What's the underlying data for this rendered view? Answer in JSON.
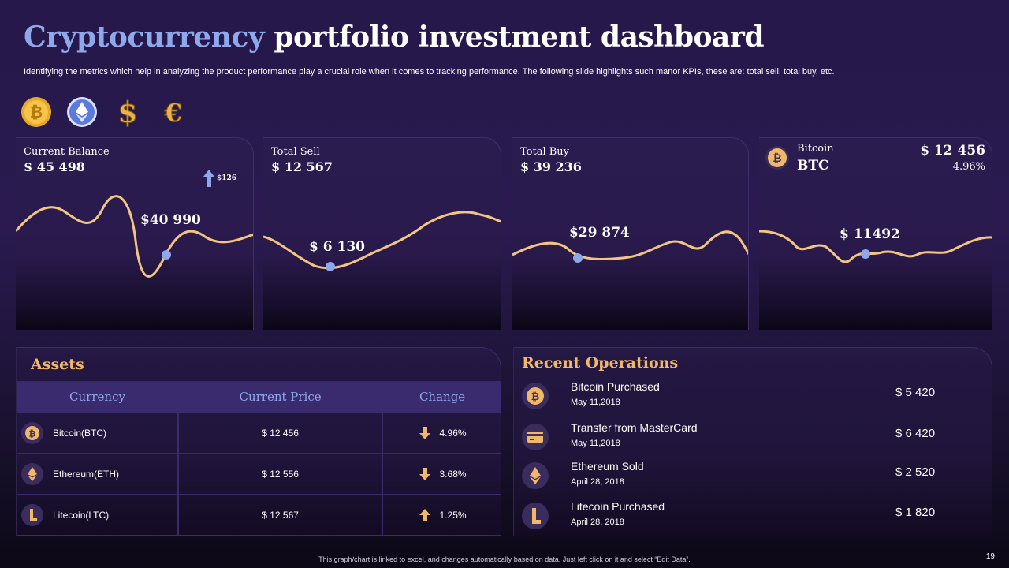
{
  "title": {
    "accent": "Cryptocurrency",
    "rest": "portfolio investment dashboard"
  },
  "subtitle": "Identifying the metrics which help in analyzing the product performance play a crucial role when it comes to tracking performance. The following slide highlights such manor KPIs, these are: total sell, total buy, etc.",
  "coins": [
    "bitcoin-coin-icon",
    "ethereum-coin-icon",
    "dollar-coin-icon",
    "euro-coin-icon"
  ],
  "colors": {
    "accent_blue": "#8fa8ec",
    "gold": "#f0b868",
    "line": "#f3c583",
    "header_purple": "#3a2a6e"
  },
  "cards": {
    "balance": {
      "label": "Current Balance",
      "value": "$ 45 498",
      "delta": "$126",
      "point": "$40 990"
    },
    "sell": {
      "label": "Total Sell",
      "value": "$ 12 567",
      "point": "$ 6 130"
    },
    "buy": {
      "label": "Total Buy",
      "value": "$ 39 236",
      "point": "$29 874"
    },
    "bitcoin": {
      "name": "Bitcoin",
      "symbol": "BTC",
      "price": "$ 12 456",
      "pct": "4.96%",
      "point": "$ 11492"
    }
  },
  "assets": {
    "title": "Assets",
    "headers": [
      "Currency",
      "Current Price",
      "Change"
    ],
    "rows": [
      {
        "currency": "Bitcoin(BTC)",
        "price": "$ 12 456",
        "change": "4.96%",
        "direction": "down"
      },
      {
        "currency": "Ethereum(ETH)",
        "price": "$ 12 556",
        "change": "3.68%",
        "direction": "down"
      },
      {
        "currency": "Litecoin(LTC)",
        "price": "$ 12 567",
        "change": "1.25%",
        "direction": "up"
      }
    ]
  },
  "operations": {
    "title": "Recent Operations",
    "items": [
      {
        "name": "Bitcoin Purchased",
        "date": "May 11,2018",
        "amount": "$ 5  420"
      },
      {
        "name": "Transfer from MasterCard",
        "date": "May 11,2018",
        "amount": "$ 6  420"
      },
      {
        "name": "Ethereum  Sold",
        "date": "April 28, 2018",
        "amount": "$ 2  520"
      },
      {
        "name": "Litecoin Purchased",
        "date": "April 28, 2018",
        "amount": "$ 1  820"
      }
    ]
  },
  "footer": "This graph/chart is linked to excel, and changes automatically based on data. Just left click on it and select “Edit Data”.",
  "page_number": "19"
}
